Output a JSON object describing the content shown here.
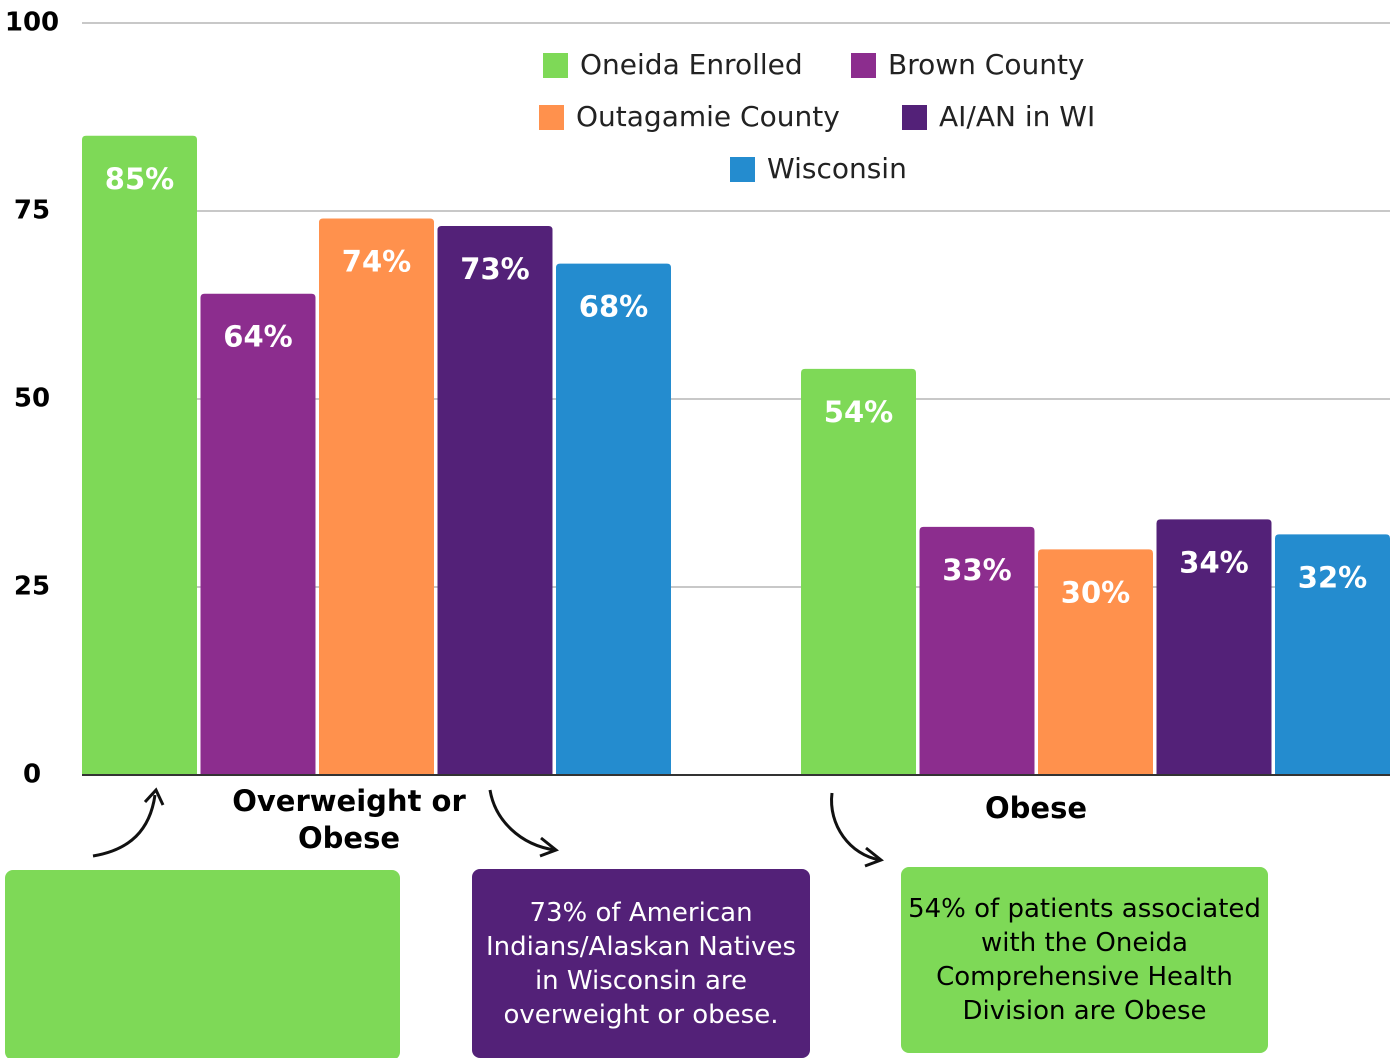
{
  "chart_data": {
    "type": "bar",
    "categories": [
      "Overweight or Obese",
      "Obese"
    ],
    "series": [
      {
        "name": "Oneida Enrolled",
        "color": "#7ed957",
        "values": [
          85,
          54
        ],
        "value_labels": [
          "85%",
          "54%"
        ]
      },
      {
        "name": "Brown County",
        "color": "#8c2d8e",
        "values": [
          64,
          33
        ],
        "value_labels": [
          "64%",
          "33%"
        ]
      },
      {
        "name": "Outagamie County",
        "color": "#ff914d",
        "values": [
          74,
          30
        ],
        "value_labels": [
          "74%",
          "30%"
        ]
      },
      {
        "name": "AI/AN in WI",
        "color": "#532178",
        "values": [
          73,
          34
        ],
        "value_labels": [
          "73%",
          "34%"
        ]
      },
      {
        "name": "Wisconsin",
        "color": "#248ccf",
        "values": [
          68,
          32
        ],
        "value_labels": [
          "68%",
          "32%"
        ]
      }
    ],
    "ylim": [
      0,
      100
    ],
    "yticks": [
      0,
      25,
      50,
      75,
      100
    ],
    "grid": true,
    "legend": "top",
    "annotations": [
      "73% of American Indians/Alaskan Natives in Wisconsin are overweight or obese.",
      "54% of patients associated with the Oneida Comprehensive Health Division are Obese"
    ]
  }
}
